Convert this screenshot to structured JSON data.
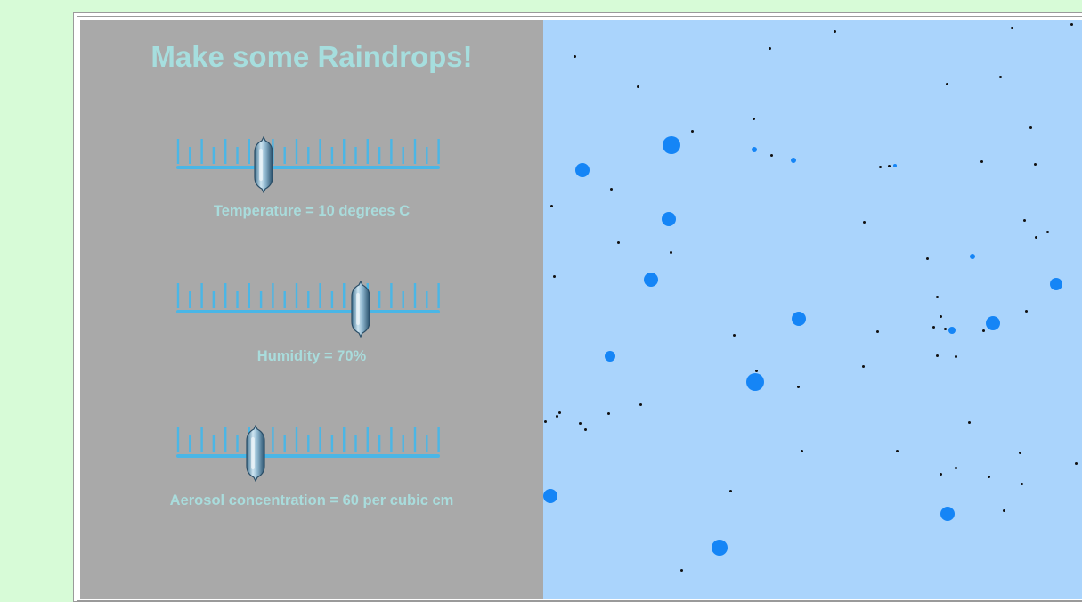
{
  "title": "Make some Raindrops!",
  "sliders": [
    {
      "id": "temperature",
      "label": "Temperature = 10 degrees C",
      "fraction": 0.33
    },
    {
      "id": "humidity",
      "label": "Humidity = 70%",
      "fraction": 0.7
    },
    {
      "id": "aerosol",
      "label": "Aerosol concentration = 60 per cubic cm",
      "fraction": 0.3
    }
  ],
  "colors": {
    "page_background": "#d7fbd7",
    "panel": "#a9a9a9",
    "sky": "#aad4fc",
    "title_text": "#a6dede",
    "slider_track": "#4ab6e6",
    "raindrop": "#1585f6",
    "aerosol_particle": "#111111"
  },
  "icons": {
    "slider_thumb": "slider-thumb-icon"
  }
}
